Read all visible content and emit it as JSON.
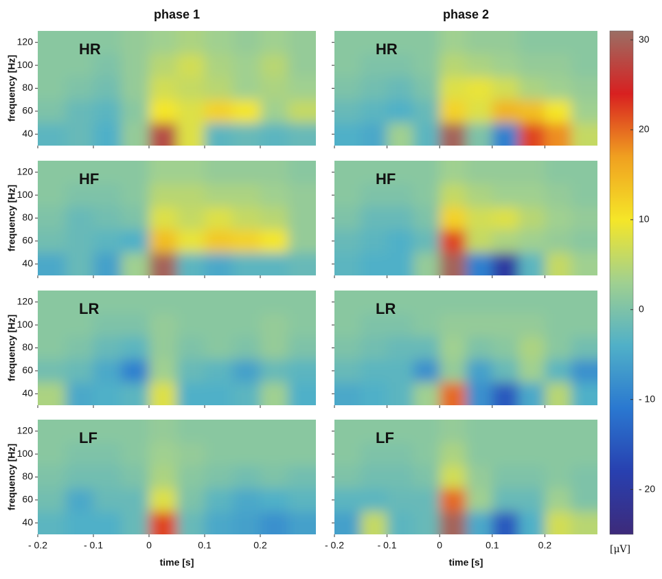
{
  "chart_data": {
    "type": "heatmap",
    "column_titles": [
      "phase 1",
      "phase 2"
    ],
    "xlabel": "time [s]",
    "ylabel": "frequency [Hz]",
    "xlim": [
      -0.2,
      0.3
    ],
    "xticks": [
      {
        "value": -0.2,
        "label": "- 0.2"
      },
      {
        "value": -0.1,
        "label": "- 0.1"
      },
      0,
      0.1,
      0.2
    ],
    "ylim": [
      30,
      130
    ],
    "yticks": [
      40,
      60,
      80,
      100,
      120
    ],
    "x": [
      -0.175,
      -0.125,
      -0.075,
      -0.025,
      0.025,
      0.075,
      0.125,
      0.175,
      0.225,
      0.275
    ],
    "y": [
      40,
      60,
      80,
      100,
      120
    ],
    "clim": [
      -25,
      31
    ],
    "cticks": [
      {
        "value": -20,
        "label": "- 20"
      },
      {
        "value": -10,
        "label": "- 10"
      },
      0,
      10,
      20,
      30
    ],
    "colorbar_label": "[μV]",
    "colors": [
      "#3d2a7a",
      "#2840b0",
      "#2a78d0",
      "#50b0c8",
      "#a0d090",
      "#f5e628",
      "#f0a020",
      "#d82020",
      "#9b6e64"
    ],
    "panels": [
      {
        "label": "HR",
        "label_color": "#c8202a",
        "column": 0,
        "values": [
          [
            -3,
            -2,
            -4,
            2,
            28,
            8,
            -3,
            -2,
            -3,
            -2
          ],
          [
            0,
            -2,
            -3,
            1,
            10,
            8,
            12,
            10,
            3,
            6
          ],
          [
            1,
            0,
            -1,
            2,
            7,
            6,
            5,
            3,
            4,
            3
          ],
          [
            1,
            1,
            0,
            2,
            5,
            7,
            4,
            3,
            5,
            2
          ],
          [
            1,
            1,
            1,
            2,
            3,
            4,
            3,
            2,
            3,
            2
          ]
        ]
      },
      {
        "label": "HR",
        "label_color": "#c8202a",
        "column": 1,
        "values": [
          [
            -4,
            -5,
            3,
            -3,
            30,
            0,
            -10,
            22,
            18,
            6
          ],
          [
            -2,
            -3,
            -4,
            -2,
            12,
            8,
            15,
            14,
            10,
            3
          ],
          [
            0,
            -1,
            -2,
            0,
            8,
            9,
            7,
            4,
            3,
            2
          ],
          [
            1,
            0,
            0,
            1,
            5,
            4,
            3,
            2,
            2,
            1
          ],
          [
            1,
            1,
            1,
            1,
            3,
            2,
            2,
            1,
            1,
            1
          ]
        ]
      },
      {
        "label": "HF",
        "label_color": "#3a6fc0",
        "column": 0,
        "values": [
          [
            -5,
            -2,
            -6,
            3,
            30,
            -3,
            -5,
            -3,
            -3,
            -2
          ],
          [
            -1,
            -2,
            -3,
            -4,
            14,
            9,
            13,
            12,
            10,
            2
          ],
          [
            0,
            -2,
            -1,
            0,
            8,
            6,
            8,
            6,
            5,
            2
          ],
          [
            1,
            0,
            0,
            1,
            5,
            5,
            4,
            4,
            3,
            2
          ],
          [
            1,
            1,
            1,
            1,
            3,
            3,
            2,
            2,
            2,
            1
          ]
        ]
      },
      {
        "label": "HF",
        "label_color": "#3a6fc0",
        "column": 1,
        "values": [
          [
            -3,
            -4,
            -4,
            2,
            30,
            -10,
            -20,
            -3,
            6,
            3
          ],
          [
            -2,
            -3,
            -4,
            -2,
            22,
            6,
            4,
            3,
            2,
            1
          ],
          [
            0,
            -2,
            -2,
            0,
            12,
            7,
            8,
            5,
            3,
            2
          ],
          [
            1,
            0,
            0,
            1,
            6,
            4,
            3,
            3,
            2,
            1
          ],
          [
            1,
            1,
            1,
            1,
            3,
            2,
            2,
            2,
            1,
            1
          ]
        ]
      },
      {
        "label": "LR",
        "label_color": "#c8c8c8",
        "column": 0,
        "values": [
          [
            4,
            -5,
            -4,
            -3,
            8,
            -4,
            -4,
            -3,
            3,
            -4
          ],
          [
            -1,
            -2,
            -5,
            -10,
            3,
            -2,
            -3,
            -6,
            -2,
            -3
          ],
          [
            1,
            0,
            -2,
            -3,
            2,
            0,
            1,
            0,
            2,
            0
          ],
          [
            1,
            1,
            0,
            0,
            2,
            1,
            1,
            1,
            2,
            1
          ],
          [
            1,
            1,
            1,
            1,
            1,
            1,
            1,
            1,
            1,
            1
          ]
        ]
      },
      {
        "label": "LR",
        "label_color": "#c8c8c8",
        "column": 1,
        "values": [
          [
            -5,
            -4,
            -3,
            3,
            20,
            -8,
            -15,
            -5,
            5,
            -4
          ],
          [
            -2,
            -3,
            -3,
            -8,
            2,
            -6,
            -2,
            3,
            -3,
            -8
          ],
          [
            0,
            -1,
            -2,
            -2,
            3,
            0,
            1,
            4,
            1,
            -1
          ],
          [
            1,
            0,
            0,
            1,
            2,
            2,
            2,
            2,
            1,
            1
          ],
          [
            1,
            1,
            1,
            1,
            1,
            1,
            1,
            1,
            1,
            1
          ]
        ]
      },
      {
        "label": "LF",
        "label_color": "#111111",
        "column": 0,
        "values": [
          [
            -3,
            -4,
            -4,
            -2,
            22,
            -2,
            -5,
            -6,
            -8,
            -6
          ],
          [
            -1,
            -5,
            -2,
            -2,
            8,
            0,
            -3,
            -5,
            -4,
            -3
          ],
          [
            0,
            -1,
            -1,
            0,
            4,
            1,
            0,
            -1,
            0,
            -1
          ],
          [
            1,
            0,
            0,
            1,
            3,
            2,
            1,
            1,
            1,
            1
          ],
          [
            1,
            1,
            1,
            1,
            2,
            1,
            1,
            1,
            1,
            1
          ]
        ]
      },
      {
        "label": "LF",
        "label_color": "#111111",
        "column": 1,
        "values": [
          [
            -6,
            6,
            -3,
            -2,
            30,
            -5,
            -15,
            -4,
            7,
            5
          ],
          [
            -3,
            -3,
            -2,
            -2,
            20,
            3,
            -2,
            -2,
            3,
            0
          ],
          [
            0,
            -1,
            -1,
            0,
            7,
            2,
            0,
            0,
            1,
            0
          ],
          [
            1,
            0,
            0,
            1,
            4,
            1,
            1,
            1,
            1,
            1
          ],
          [
            1,
            1,
            1,
            1,
            2,
            1,
            1,
            1,
            1,
            1
          ]
        ]
      }
    ]
  }
}
